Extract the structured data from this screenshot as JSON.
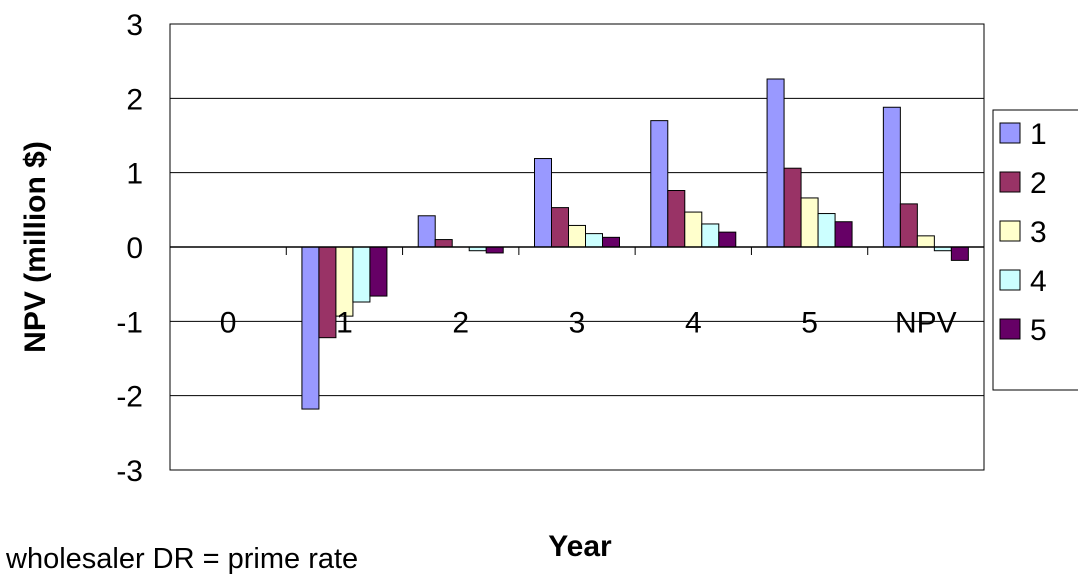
{
  "chart_data": {
    "type": "bar",
    "title": "",
    "xlabel": "Year",
    "ylabel": "NPV (million $)",
    "ylim": [
      -3,
      3
    ],
    "yticks": [
      "-3",
      "-2",
      "-1",
      "0",
      "1",
      "2",
      "3"
    ],
    "grid": true,
    "legend_position": "right",
    "categories": [
      "0",
      "1",
      "2",
      "3",
      "4",
      "5",
      "NPV"
    ],
    "series": [
      {
        "name": "1",
        "color": "#9999FF",
        "values": [
          0,
          -2.18,
          0.42,
          1.19,
          1.7,
          2.26,
          1.88
        ]
      },
      {
        "name": "2",
        "color": "#993366",
        "values": [
          0,
          -1.22,
          0.1,
          0.53,
          0.76,
          1.06,
          0.58
        ]
      },
      {
        "name": "3",
        "color": "#FFFFCC",
        "values": [
          0,
          -0.93,
          0,
          0.29,
          0.47,
          0.66,
          0.15
        ]
      },
      {
        "name": "4",
        "color": "#CCFFFF",
        "values": [
          0,
          -0.74,
          -0.05,
          0.18,
          0.31,
          0.45,
          -0.05
        ]
      },
      {
        "name": "5",
        "color": "#660066",
        "values": [
          0,
          -0.66,
          -0.08,
          0.13,
          0.2,
          0.34,
          -0.18
        ]
      }
    ]
  },
  "footnote": "wholesaler DR = prime rate"
}
